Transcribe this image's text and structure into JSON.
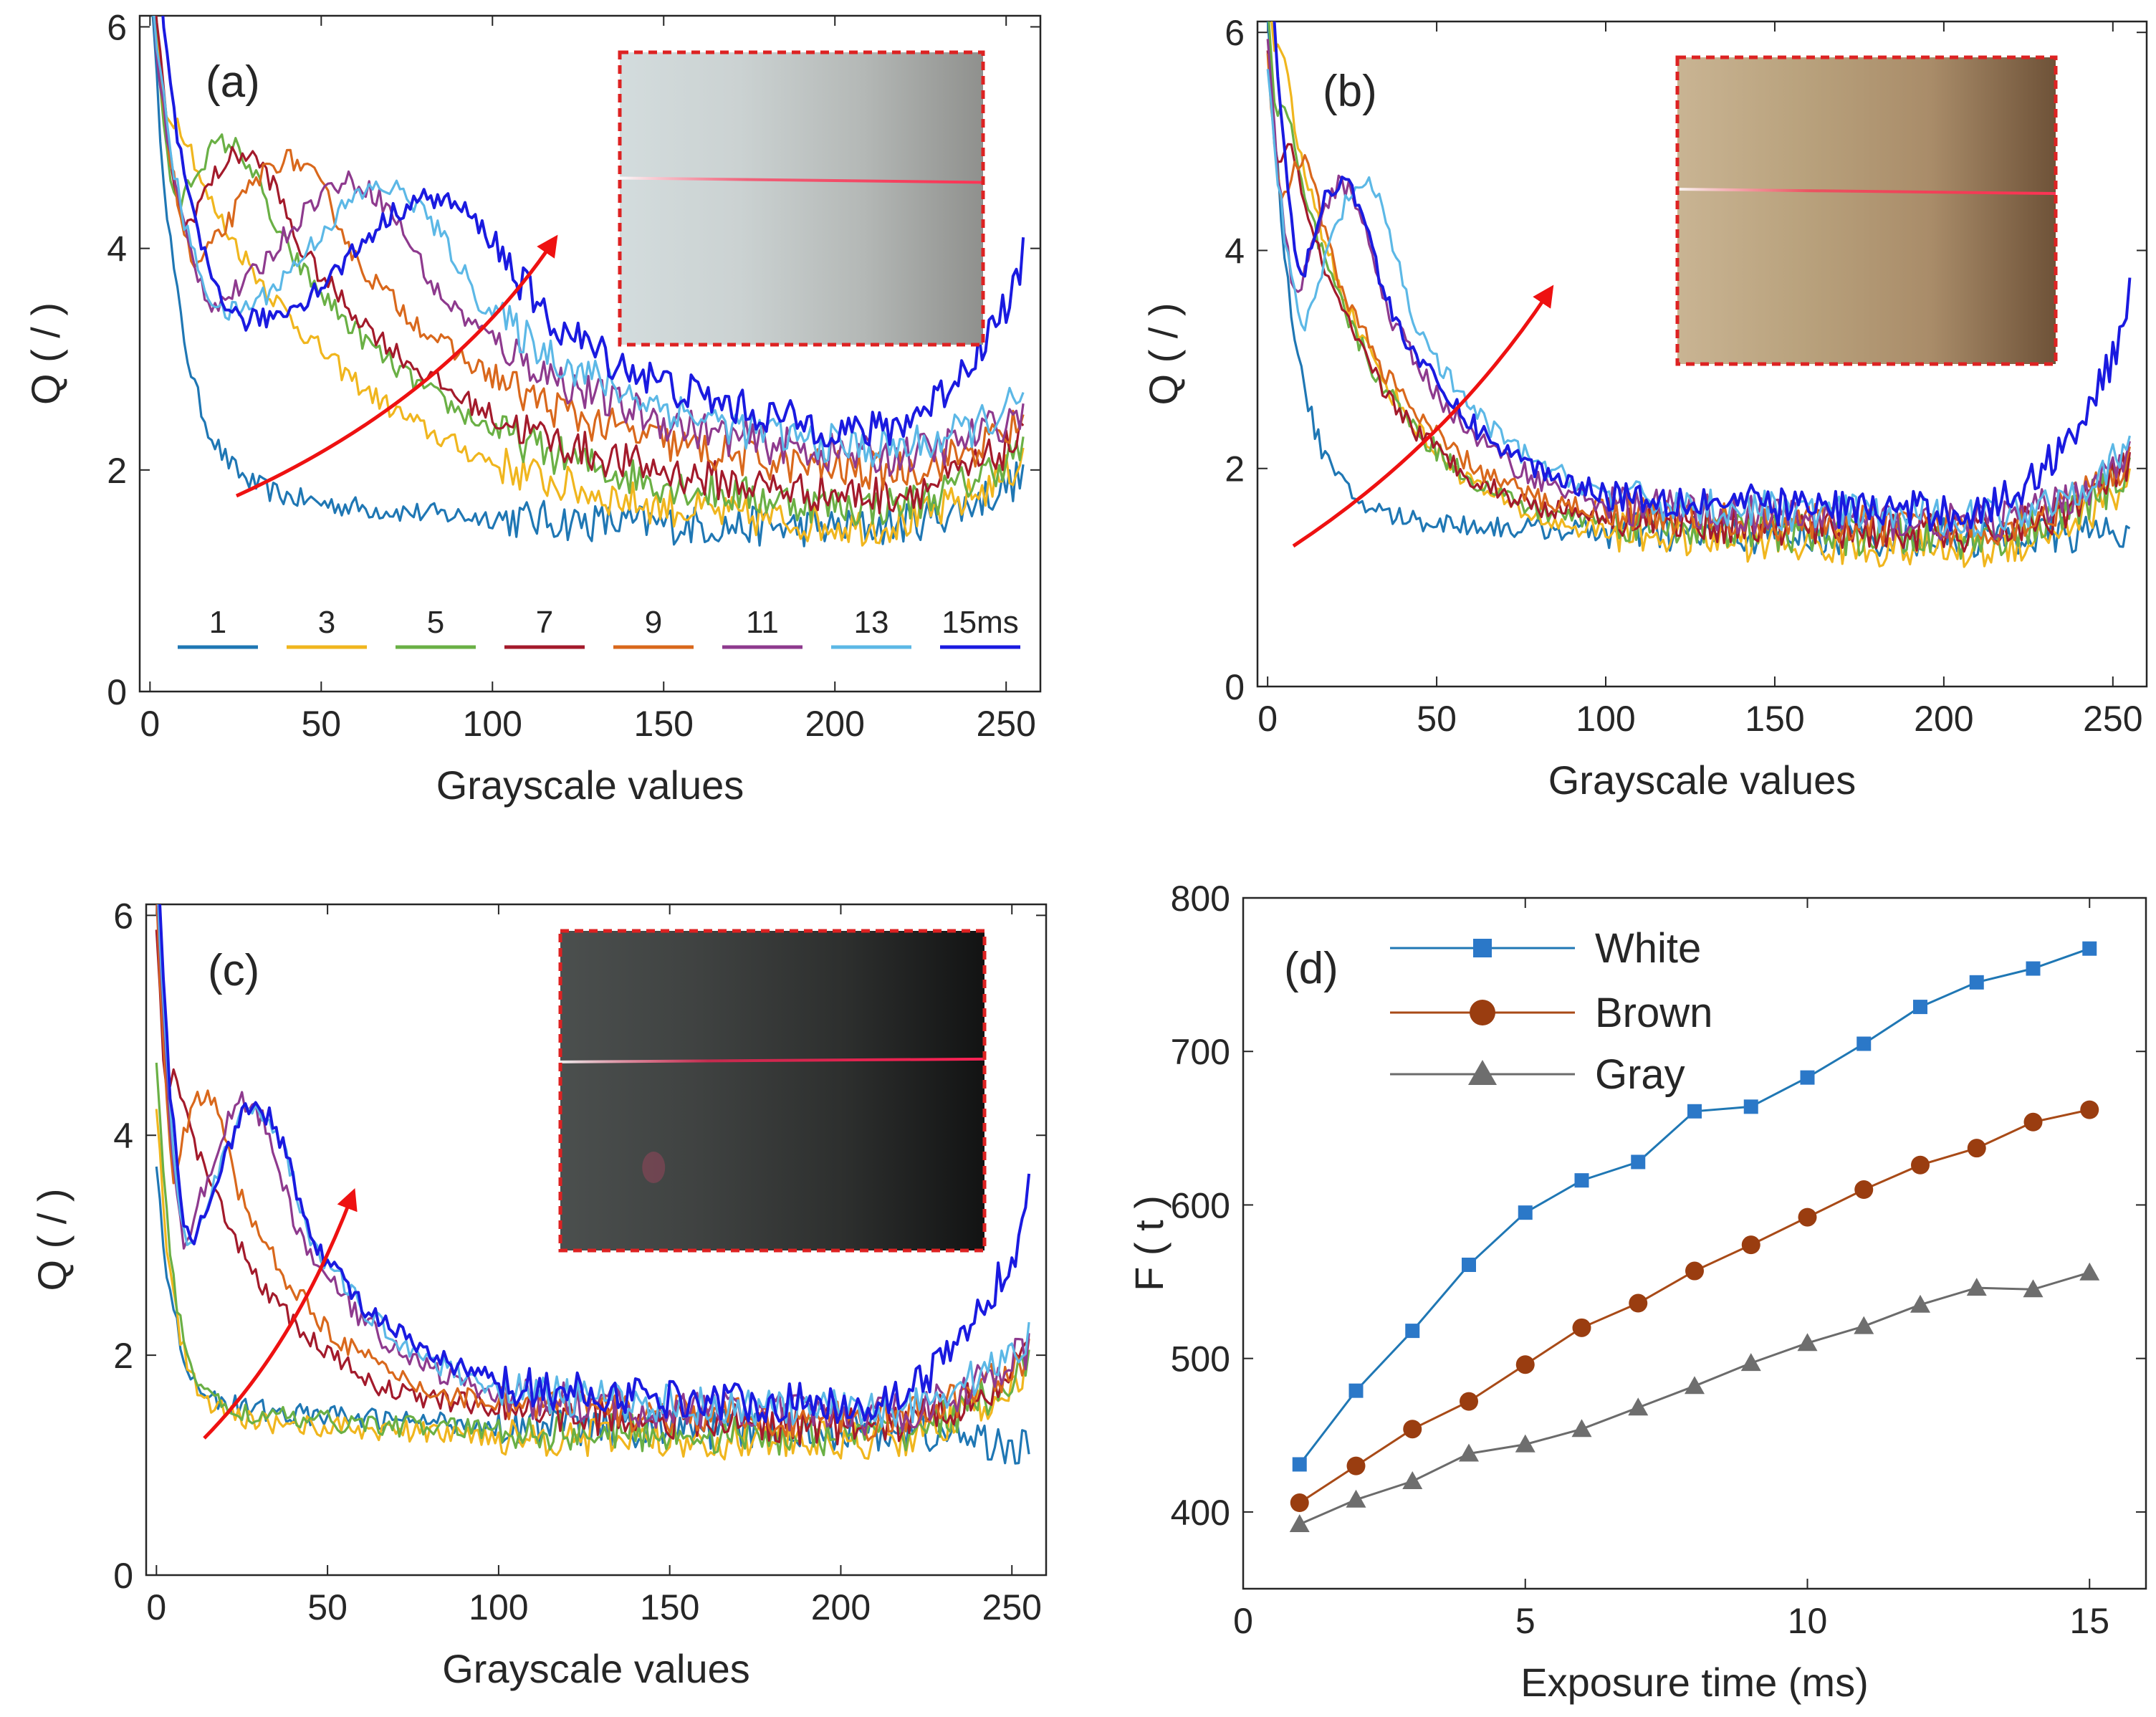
{
  "figure": {
    "panels": {
      "a": {
        "label": "(a)",
        "inset": {
          "surface": "white",
          "colors": [
            "#d3dcdd",
            "#cbd2d2",
            "#b4b8b6",
            "#8f908d"
          ],
          "laser": "#ff3355"
        }
      },
      "b": {
        "label": "(b)",
        "inset": {
          "surface": "brown",
          "colors": [
            "#c9b493",
            "#b9a27d",
            "#a98c69",
            "#6e5238"
          ],
          "laser": "#ff3355"
        }
      },
      "c": {
        "label": "(c)",
        "inset": {
          "surface": "gray",
          "colors": [
            "#4b4f4e",
            "#3f4241",
            "#2d2f2e",
            "#121313"
          ],
          "laser": "#ff2255"
        }
      },
      "d": {
        "label": "(d)"
      }
    },
    "exposure_legend": {
      "labels": [
        "1",
        "3",
        "5",
        "7",
        "9",
        "11",
        "13",
        "15ms"
      ],
      "colors": [
        "#1f77b4",
        "#f0b61e",
        "#6ab045",
        "#a31a2b",
        "#d9681c",
        "#8e3a8e",
        "#5cb8e6",
        "#1a1ae0"
      ]
    },
    "arrow_color": "#ee1111",
    "inset_border_color": "#dd2222"
  },
  "chart_data": [
    {
      "id": "a",
      "type": "line",
      "title": "(a)",
      "xlabel": "Grayscale values",
      "ylabel": "Q ( / )",
      "xlim": [
        -3,
        260
      ],
      "ylim": [
        0,
        6.1
      ],
      "xticks": [
        0,
        50,
        100,
        150,
        200,
        250
      ],
      "yticks": [
        0,
        2,
        4,
        6
      ],
      "grid": false,
      "series": [
        {
          "name": "1",
          "peak_x": null,
          "peak_y": null,
          "plateau_y": 1.45,
          "start_y": 6.0,
          "end_y": 2.05
        },
        {
          "name": "3",
          "peak_x": 5,
          "peak_y": 5.2,
          "plateau_y": 1.4,
          "start_y": 5.2,
          "end_y": 2.2
        },
        {
          "name": "5",
          "peak_x": 22,
          "peak_y": 4.95,
          "plateau_y": 1.55,
          "start_y": 5.0,
          "end_y": 2.3
        },
        {
          "name": "7",
          "peak_x": 27,
          "peak_y": 4.85,
          "plateau_y": 1.65,
          "start_y": 5.3,
          "end_y": 2.4
        },
        {
          "name": "9",
          "peak_x": 40,
          "peak_y": 4.8,
          "plateau_y": 1.85,
          "start_y": 5.0,
          "end_y": 2.5
        },
        {
          "name": "11",
          "peak_x": 58,
          "peak_y": 4.6,
          "plateau_y": 1.95,
          "start_y": 4.9,
          "end_y": 2.6
        },
        {
          "name": "13",
          "peak_x": 68,
          "peak_y": 4.55,
          "plateau_y": 2.0,
          "start_y": 5.0,
          "end_y": 2.7
        },
        {
          "name": "15ms",
          "peak_x": 82,
          "peak_y": 4.45,
          "plateau_y": 2.1,
          "start_y": 6.1,
          "end_y": 4.1
        }
      ]
    },
    {
      "id": "b",
      "type": "line",
      "title": "(b)",
      "xlabel": "Grayscale values",
      "ylabel": "Q ( / )",
      "xlim": [
        -3,
        260
      ],
      "ylim": [
        0,
        6.1
      ],
      "xticks": [
        0,
        50,
        100,
        150,
        200,
        250
      ],
      "yticks": [
        0,
        2,
        4,
        6
      ],
      "grid": false,
      "series": [
        {
          "name": "1",
          "peak_x": null,
          "peak_y": null,
          "plateau_y": 1.35,
          "start_y": 5.8,
          "end_y": 1.45
        },
        {
          "name": "3",
          "peak_x": 3,
          "peak_y": 5.8,
          "plateau_y": 1.2,
          "start_y": 5.8,
          "end_y": 2.0
        },
        {
          "name": "5",
          "peak_x": 4,
          "peak_y": 5.3,
          "plateau_y": 1.3,
          "start_y": 5.3,
          "end_y": 2.1
        },
        {
          "name": "7",
          "peak_x": 6,
          "peak_y": 4.9,
          "plateau_y": 1.35,
          "start_y": 4.9,
          "end_y": 2.15
        },
        {
          "name": "9",
          "peak_x": 10,
          "peak_y": 4.8,
          "plateau_y": 1.4,
          "start_y": 4.8,
          "end_y": 2.2
        },
        {
          "name": "11",
          "peak_x": 22,
          "peak_y": 4.6,
          "plateau_y": 1.45,
          "start_y": 4.9,
          "end_y": 2.25
        },
        {
          "name": "13",
          "peak_x": 28,
          "peak_y": 4.6,
          "plateau_y": 1.5,
          "start_y": 4.8,
          "end_y": 2.3
        },
        {
          "name": "15ms",
          "peak_x": 22,
          "peak_y": 4.65,
          "plateau_y": 1.55,
          "start_y": 6.1,
          "end_y": 3.75
        }
      ]
    },
    {
      "id": "c",
      "type": "line",
      "title": "(c)",
      "xlabel": "Grayscale values",
      "ylabel": "Q ( / )",
      "xlim": [
        -3,
        260
      ],
      "ylim": [
        0,
        6.1
      ],
      "xticks": [
        0,
        50,
        100,
        150,
        200,
        250
      ],
      "yticks": [
        0,
        2,
        4,
        6
      ],
      "grid": false,
      "series": [
        {
          "name": "1",
          "peak_x": null,
          "peak_y": null,
          "plateau_y": 1.3,
          "start_y": 3.5,
          "end_y": 1.1
        },
        {
          "name": "3",
          "peak_x": null,
          "peak_y": null,
          "plateau_y": 1.2,
          "start_y": 4.0,
          "end_y": 2.0
        },
        {
          "name": "5",
          "peak_x": null,
          "peak_y": null,
          "plateau_y": 1.25,
          "start_y": 4.4,
          "end_y": 2.05
        },
        {
          "name": "7",
          "peak_x": 5,
          "peak_y": 4.5,
          "plateau_y": 1.3,
          "start_y": 5.0,
          "end_y": 2.1
        },
        {
          "name": "9",
          "peak_x": 14,
          "peak_y": 4.35,
          "plateau_y": 1.35,
          "start_y": 5.2,
          "end_y": 2.15
        },
        {
          "name": "11",
          "peak_x": 26,
          "peak_y": 4.3,
          "plateau_y": 1.4,
          "start_y": 5.4,
          "end_y": 2.2
        },
        {
          "name": "13",
          "peak_x": 29,
          "peak_y": 4.25,
          "plateau_y": 1.45,
          "start_y": 5.6,
          "end_y": 2.3
        },
        {
          "name": "15ms",
          "peak_x": 29,
          "peak_y": 4.25,
          "plateau_y": 1.5,
          "start_y": 6.0,
          "end_y": 3.65
        }
      ]
    },
    {
      "id": "d",
      "type": "line",
      "title": "(d)",
      "xlabel": "Exposure time (ms)",
      "ylabel": "F ( t )",
      "xlim": [
        0,
        16
      ],
      "ylim": [
        350,
        800
      ],
      "xticks": [
        0,
        5,
        10,
        15
      ],
      "yticks": [
        400,
        500,
        600,
        700,
        800
      ],
      "grid": false,
      "legend_position": "top-left",
      "x": [
        1,
        2,
        3,
        4,
        5,
        6,
        7,
        8,
        9,
        10,
        11,
        12,
        13,
        14,
        15
      ],
      "series": [
        {
          "name": "White",
          "marker": "square",
          "color": "#1f77b4",
          "marker_fill": "#2b78c8",
          "values": [
            431,
            479,
            518,
            561,
            595,
            616,
            628,
            661,
            664,
            683,
            705,
            729,
            745,
            754,
            767
          ]
        },
        {
          "name": "Brown",
          "marker": "circle",
          "color": "#a84a17",
          "marker_fill": "#9a3d10",
          "values": [
            406,
            430,
            454,
            472,
            496,
            520,
            536,
            557,
            574,
            592,
            610,
            626,
            637,
            654,
            662
          ]
        },
        {
          "name": "Gray",
          "marker": "triangle",
          "color": "#6b6b6b",
          "marker_fill": "#6e6e6e",
          "values": [
            392,
            408,
            420,
            438,
            444,
            454,
            468,
            482,
            497,
            510,
            521,
            535,
            546,
            545,
            556
          ]
        }
      ]
    }
  ]
}
